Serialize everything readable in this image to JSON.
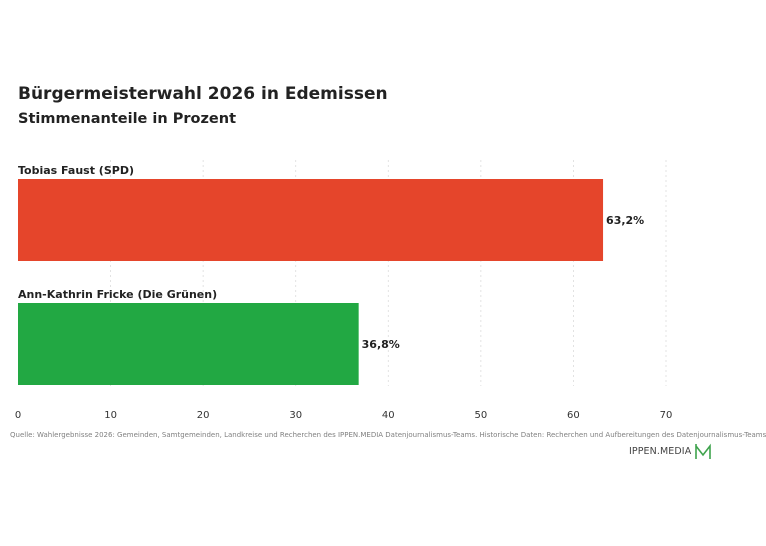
{
  "header": {
    "title": "Bürgermeisterwahl 2026 in Edemissen",
    "subtitle": "Stimmenanteile in Prozent"
  },
  "chart_data": {
    "type": "bar",
    "orientation": "horizontal",
    "title": "Bürgermeisterwahl 2026 in Edemissen",
    "subtitle": "Stimmenanteile in Prozent",
    "xlabel": "",
    "ylabel": "",
    "xlim": [
      0,
      70
    ],
    "ticks": [
      0,
      10,
      20,
      30,
      40,
      50,
      60,
      70
    ],
    "grid": true,
    "categories": [
      "Tobias Faust (SPD)",
      "Ann-Kathrin Fricke (Die Grünen)"
    ],
    "values": [
      63.2,
      36.8
    ],
    "value_labels": [
      "63,2%",
      "36,8%"
    ],
    "colors": [
      "#e5452b",
      "#22a843"
    ]
  },
  "footer": {
    "source": "Quelle: Wahlergebnisse 2026: Gemeinden, Samtgemeinden, Landkreise und Recherchen des IPPEN.MEDIA Datenjournalismus-Teams. Historische Daten: Recherchen und Aufbereitungen des Datenjournalismus-Teams",
    "brand": "IPPEN.MEDIA",
    "brand_color": "#3fa34d"
  }
}
